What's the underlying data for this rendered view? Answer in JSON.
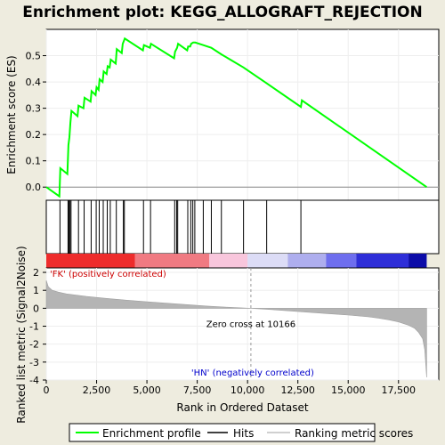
{
  "chart_data": {
    "type": "line",
    "title": "Enrichment plot: KEGG_ALLOGRAFT_REJECTION",
    "colors": {
      "enrichment_line": "#00ff00",
      "hits": "#000000",
      "metric_fill": "#b4b4b4",
      "panel_bg": "#ffffff",
      "page_bg": "#eeecdf",
      "pos_label": "#cc0000",
      "neg_label": "#0000cc"
    },
    "top_panel": {
      "ylabel": "Enrichment score (ES)",
      "ylim": [
        -0.05,
        0.6
      ],
      "yticks": [
        0.0,
        0.1,
        0.2,
        0.3,
        0.4,
        0.5
      ],
      "ytick_labels": [
        "0.0",
        "0.1",
        "0.2",
        "0.3",
        "0.4",
        "0.5"
      ],
      "series": [
        {
          "name": "Enrichment profile",
          "x": [
            0,
            650,
            700,
            1050,
            1100,
            1150,
            1200,
            1250,
            1550,
            1600,
            1850,
            1900,
            2200,
            2250,
            2450,
            2500,
            2600,
            2650,
            2800,
            2850,
            3000,
            3050,
            3150,
            3200,
            3450,
            3500,
            3750,
            3800,
            3850,
            3900,
            4800,
            4850,
            5150,
            5200,
            6350,
            6400,
            6500,
            6550,
            7000,
            7050,
            7150,
            7200,
            7300,
            7400,
            7800,
            8200,
            8700,
            9800,
            10950,
            12650,
            12700,
            18900
          ],
          "y": [
            0.0,
            -0.035,
            0.072,
            0.05,
            0.16,
            0.19,
            0.245,
            0.29,
            0.27,
            0.31,
            0.3,
            0.34,
            0.325,
            0.365,
            0.35,
            0.38,
            0.37,
            0.41,
            0.4,
            0.44,
            0.43,
            0.46,
            0.455,
            0.485,
            0.47,
            0.525,
            0.51,
            0.545,
            0.555,
            0.565,
            0.52,
            0.54,
            0.53,
            0.545,
            0.49,
            0.515,
            0.53,
            0.545,
            0.52,
            0.535,
            0.535,
            0.545,
            0.55,
            0.55,
            0.54,
            0.53,
            0.505,
            0.455,
            0.395,
            0.305,
            0.33,
            0.0
          ]
        }
      ]
    },
    "hits": [
      680,
      1080,
      1130,
      1180,
      1230,
      1600,
      1880,
      2230,
      2480,
      2630,
      2830,
      3030,
      3180,
      3480,
      3830,
      3880,
      4830,
      5180,
      6380,
      6480,
      6530,
      7030,
      7180,
      7280,
      7380,
      7800,
      8200,
      8700,
      9800,
      10950,
      12650
    ],
    "color_bar": {
      "segments": [
        {
          "from": 0,
          "to": 4400,
          "color": "#ee2c2c"
        },
        {
          "from": 4400,
          "to": 8100,
          "color": "#f07a82"
        },
        {
          "from": 8100,
          "to": 10000,
          "color": "#f8c6dc"
        },
        {
          "from": 10000,
          "to": 12000,
          "color": "#dcdcf6"
        },
        {
          "from": 12000,
          "to": 13900,
          "color": "#aeaeee"
        },
        {
          "from": 13900,
          "to": 15400,
          "color": "#6e6eee"
        },
        {
          "from": 15400,
          "to": 18000,
          "color": "#2e2ed8"
        },
        {
          "from": 18000,
          "to": 18900,
          "color": "#0c0ca8"
        }
      ]
    },
    "bottom_panel": {
      "ylabel": "Ranked list metric (Signal2Noise)",
      "ylim": [
        -4,
        2.25
      ],
      "yticks": [
        2,
        1,
        0,
        -1,
        -2,
        -3,
        -4
      ],
      "ytick_labels": [
        "2",
        "1",
        "0",
        "-1",
        "-2",
        "-3",
        "-4"
      ],
      "metric_curve": {
        "x": [
          0,
          100,
          300,
          600,
          1000,
          2000,
          3000,
          4000,
          5000,
          6000,
          7000,
          8000,
          9000,
          10166,
          11000,
          12000,
          13000,
          14000,
          15000,
          16000,
          16500,
          17000,
          17500,
          18000,
          18300,
          18500,
          18700,
          18800,
          18900
        ],
        "y": [
          1.55,
          1.2,
          1.0,
          0.9,
          0.8,
          0.66,
          0.55,
          0.45,
          0.36,
          0.28,
          0.2,
          0.12,
          0.06,
          0.0,
          -0.06,
          -0.14,
          -0.22,
          -0.3,
          -0.38,
          -0.48,
          -0.55,
          -0.64,
          -0.76,
          -0.95,
          -1.12,
          -1.35,
          -1.7,
          -2.3,
          -3.85
        ]
      },
      "zero_cross": 10166,
      "zero_cross_label": "Zero cross at 10166",
      "pos_label": "'FK' (positively correlated)",
      "neg_label": "'HN' (negatively correlated)"
    },
    "xaxis": {
      "label": "Rank in Ordered Dataset",
      "xlim": [
        0,
        19500
      ],
      "ticks": [
        0,
        2500,
        5000,
        7500,
        10000,
        12500,
        15000,
        17500
      ],
      "tick_labels": [
        "0",
        "2,500",
        "5,000",
        "7,500",
        "10,000",
        "12,500",
        "15,000",
        "17,500"
      ]
    },
    "legend": {
      "placement": "bottom",
      "entries": [
        "Enrichment profile",
        "Hits",
        "Ranking metric scores"
      ]
    }
  }
}
